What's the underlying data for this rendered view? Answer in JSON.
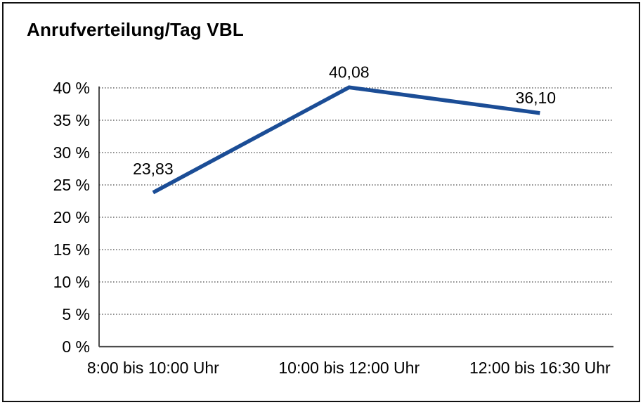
{
  "page": {
    "background_color": "#ffffff",
    "frame_color": "#111111"
  },
  "chart_data": {
    "type": "line",
    "title": "Anrufverteilung/Tag VBL",
    "categories": [
      "8:00 bis 10:00 Uhr",
      "10:00 bis 12:00 Uhr",
      "12:00 bis 16:30 Uhr"
    ],
    "series": [
      {
        "name": "Anrufverteilung/Tag VBL",
        "values": [
          23.83,
          40.08,
          36.1
        ],
        "point_labels": [
          "23,83",
          "40,08",
          "36,10"
        ]
      }
    ],
    "xlabel": "",
    "ylabel": "",
    "ylim": [
      0,
      40
    ],
    "y_tick_step": 5,
    "y_tick_labels": [
      "0 %",
      "5 %",
      "10 %",
      "15 %",
      "20 %",
      "25 %",
      "30 %",
      "35 %",
      "40 %"
    ],
    "grid": "horizontal-dotted",
    "legend_position": "none",
    "line_color": "#1b4d96",
    "grid_color": "#4d4d4d",
    "axis_color": "#4d4d4d",
    "text_color": "#000000"
  }
}
